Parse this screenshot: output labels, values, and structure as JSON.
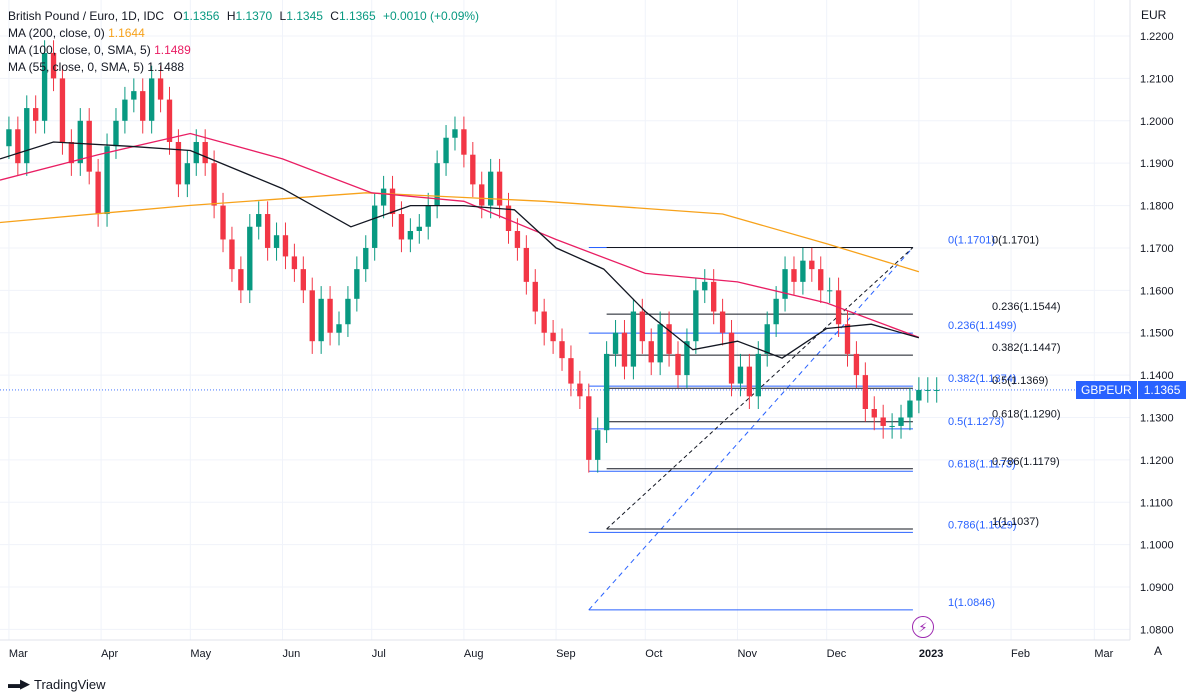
{
  "legend": {
    "title": "British Pound / Euro, 1D, IDC",
    "o_label": "O",
    "o": "1.1356",
    "h_label": "H",
    "h": "1.1370",
    "l_label": "L",
    "l": "1.1345",
    "c_label": "C",
    "c": "1.1365",
    "change": "+0.0010 (+0.09%)",
    "ma200_label": "MA (200, close, 0)",
    "ma200_value": "1.1644",
    "ma100_label": "MA (100, close, 0, SMA, 5)",
    "ma100_value": "1.1489",
    "ma55_label": "MA (55, close, 0, SMA, 5)",
    "ma55_value": "1.1488"
  },
  "currency": "EUR",
  "price_tag": {
    "symbol": "GBPEUR",
    "value": "1.1365"
  },
  "brand": {
    "name": "TradingView"
  },
  "auto_button": "A",
  "colors": {
    "up": "#089981",
    "down": "#f23645",
    "ma200": "#f7a21b",
    "ma100": "#e91e63",
    "ma55": "#131722",
    "fib_blue": "#2962ff",
    "fib_black": "#131722",
    "grid": "#f0f3fa"
  },
  "chart_data": {
    "type": "candlestick",
    "symbol": "GBPEUR",
    "y_ticks": [
      1.08,
      1.09,
      1.1,
      1.11,
      1.12,
      1.13,
      1.14,
      1.15,
      1.16,
      1.17,
      1.18,
      1.19,
      1.2,
      1.21,
      1.22
    ],
    "y_tick_labels": [
      "1.0800",
      "1.0900",
      "1.1000",
      "1.1100",
      "1.1200",
      "1.1300",
      "1.1400",
      "1.1500",
      "1.1600",
      "1.1700",
      "1.1800",
      "1.1900",
      "1.2000",
      "1.2100",
      "1.2200"
    ],
    "x_labels": [
      "Mar",
      "Apr",
      "May",
      "Jun",
      "Jul",
      "Aug",
      "Sep",
      "Oct",
      "Nov",
      "Dec",
      "2023",
      "Feb",
      "Mar"
    ],
    "x_label_days": [
      0,
      31,
      61,
      92,
      122,
      153,
      184,
      214,
      245,
      275,
      306,
      337,
      365
    ],
    "ylim": [
      1.0775,
      1.2285
    ],
    "xlim_days": [
      -3,
      377
    ],
    "current_price": 1.1365,
    "close_series": {
      "day": [
        0,
        3,
        6,
        9,
        12,
        15,
        18,
        21,
        24,
        27,
        30,
        33,
        36,
        39,
        42,
        45,
        48,
        51,
        54,
        57,
        60,
        63,
        66,
        69,
        72,
        75,
        78,
        81,
        84,
        87,
        90,
        93,
        96,
        99,
        102,
        105,
        108,
        111,
        114,
        117,
        120,
        123,
        126,
        129,
        132,
        135,
        138,
        141,
        144,
        147,
        150,
        153,
        156,
        159,
        162,
        165,
        168,
        171,
        174,
        177,
        180,
        183,
        186,
        189,
        192,
        195,
        198,
        201,
        204,
        207,
        210,
        213,
        216,
        219,
        222,
        225,
        228,
        231,
        234,
        237,
        240,
        243,
        246,
        249,
        252,
        255,
        258,
        261,
        264,
        267,
        270,
        273,
        276,
        279,
        282,
        285,
        288,
        291,
        294,
        297,
        300,
        303,
        306,
        309,
        312
      ],
      "close": [
        1.198,
        1.19,
        1.203,
        1.2,
        1.216,
        1.21,
        1.195,
        1.19,
        1.2,
        1.188,
        1.178,
        1.194,
        1.2,
        1.205,
        1.207,
        1.2,
        1.21,
        1.205,
        1.195,
        1.185,
        1.19,
        1.195,
        1.19,
        1.18,
        1.172,
        1.165,
        1.16,
        1.175,
        1.178,
        1.17,
        1.173,
        1.168,
        1.165,
        1.16,
        1.148,
        1.158,
        1.15,
        1.152,
        1.158,
        1.165,
        1.17,
        1.18,
        1.184,
        1.178,
        1.172,
        1.174,
        1.175,
        1.18,
        1.19,
        1.196,
        1.198,
        1.192,
        1.185,
        1.18,
        1.188,
        1.18,
        1.174,
        1.17,
        1.162,
        1.155,
        1.15,
        1.148,
        1.144,
        1.138,
        1.135,
        1.12,
        1.127,
        1.145,
        1.15,
        1.142,
        1.155,
        1.148,
        1.143,
        1.152,
        1.145,
        1.14,
        1.148,
        1.16,
        1.162,
        1.155,
        1.15,
        1.138,
        1.142,
        1.135,
        1.145,
        1.152,
        1.158,
        1.165,
        1.162,
        1.167,
        1.165,
        1.16,
        1.16,
        1.152,
        1.145,
        1.14,
        1.132,
        1.13,
        1.128,
        1.128,
        1.13,
        1.134,
        1.1365,
        1.1365,
        1.1365
      ]
    },
    "moving_averages": [
      {
        "name": "MA (200, close, 0)",
        "day": [
          -3,
          60,
          120,
          180,
          240,
          275,
          306
        ],
        "value": [
          1.176,
          1.18,
          1.183,
          1.181,
          1.178,
          1.171,
          1.1644
        ]
      },
      {
        "name": "MA (100, close, 0, SMA, 5)",
        "day": [
          -3,
          30,
          61,
          92,
          122,
          153,
          184,
          214,
          245,
          275,
          306
        ],
        "value": [
          1.186,
          1.192,
          1.197,
          1.191,
          1.183,
          1.181,
          1.172,
          1.164,
          1.162,
          1.157,
          1.1489
        ]
      },
      {
        "name": "MA (55, close, 0, SMA, 5)",
        "day": [
          -3,
          15,
          40,
          61,
          92,
          115,
          135,
          153,
          170,
          184,
          200,
          214,
          230,
          245,
          260,
          275,
          290,
          306
        ],
        "value": [
          1.191,
          1.195,
          1.194,
          1.193,
          1.184,
          1.175,
          1.18,
          1.18,
          1.179,
          1.17,
          1.165,
          1.155,
          1.146,
          1.148,
          1.144,
          1.151,
          1.152,
          1.1488
        ]
      }
    ],
    "fib_blue": {
      "levels": [
        {
          "ratio": "0",
          "value": 1.1701,
          "label": "0(1.1701)"
        },
        {
          "ratio": "0.236",
          "value": 1.1499,
          "label": "0.236(1.1499)"
        },
        {
          "ratio": "0.382",
          "value": 1.1374,
          "label": "0.382(1.1374)"
        },
        {
          "ratio": "0.5",
          "value": 1.1273,
          "label": "0.5(1.1273)"
        },
        {
          "ratio": "0.618",
          "value": 1.1173,
          "label": "0.618(1.1173)"
        },
        {
          "ratio": "0.786",
          "value": 1.1029,
          "label": "0.786(1.1029)"
        },
        {
          "ratio": "1",
          "value": 1.0846,
          "label": "1(1.0846)"
        }
      ],
      "start_day": 195,
      "end_day": 304
    },
    "fib_black": {
      "levels": [
        {
          "ratio": "0",
          "value": 1.1701,
          "label": "0(1.1701)"
        },
        {
          "ratio": "0.236",
          "value": 1.1544,
          "label": "0.236(1.1544)"
        },
        {
          "ratio": "0.382",
          "value": 1.1447,
          "label": "0.382(1.1447)"
        },
        {
          "ratio": "0.5",
          "value": 1.1369,
          "label": "0.5(1.1369)"
        },
        {
          "ratio": "0.618",
          "value": 1.129,
          "label": "0.618(1.1290)"
        },
        {
          "ratio": "0.786",
          "value": 1.1179,
          "label": "0.786(1.1179)"
        },
        {
          "ratio": "1",
          "value": 1.1037,
          "label": "1(1.1037)"
        }
      ],
      "start_day": 201,
      "end_day": 304
    }
  }
}
